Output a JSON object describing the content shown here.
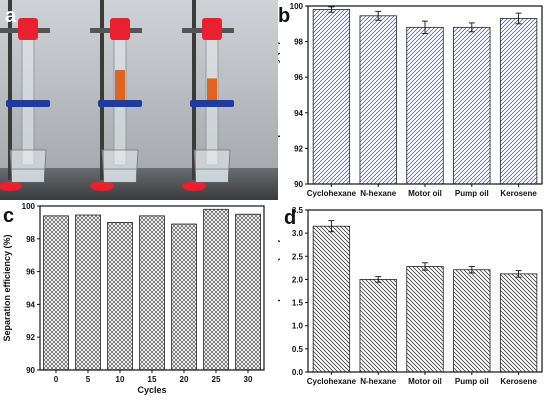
{
  "panels": {
    "a": {
      "letter": "a"
    },
    "b": {
      "letter": "b"
    },
    "c": {
      "letter": "c"
    },
    "d": {
      "letter": "d"
    }
  },
  "photo": {
    "liquid_levels": [
      0.0,
      0.25,
      0.18
    ],
    "liquid_color": "#e0631f",
    "clamp_color": "#1f3b9c",
    "cap_color": "#e8202f"
  },
  "chart_data": [
    {
      "id": "b",
      "type": "bar",
      "categories": [
        "Cyclohexane",
        "N-hexane",
        "Motor oil",
        "Pump oil",
        "Kerosene"
      ],
      "values": [
        99.8,
        99.45,
        98.8,
        98.8,
        99.3
      ],
      "errors": [
        0.15,
        0.25,
        0.35,
        0.25,
        0.3
      ],
      "ylabel": "Separation efficiency (%)",
      "xlabel": "",
      "ylim": [
        90,
        100
      ],
      "yticks": [
        "90",
        "92",
        "94",
        "96",
        "98",
        "100"
      ],
      "hatch": "diagonal-left",
      "bar_color": "#3a4a9e"
    },
    {
      "id": "c",
      "type": "bar",
      "categories": [
        "0",
        "5",
        "10",
        "15",
        "20",
        "25",
        "30"
      ],
      "values": [
        99.4,
        99.45,
        99.0,
        99.4,
        98.9,
        99.8,
        99.5
      ],
      "ylabel": "Separation efficiency (%)",
      "xlabel": "Cycles",
      "ylim": [
        90,
        100
      ],
      "yticks": [
        "90",
        "92",
        "94",
        "96",
        "98",
        "100"
      ],
      "hatch": "cross",
      "bar_color": "#555555"
    },
    {
      "id": "d",
      "type": "bar",
      "categories": [
        "Cyclohexane",
        "N-hexane",
        "Motor oil",
        "Pump oil",
        "Kerosene"
      ],
      "values": [
        3.15,
        2.0,
        2.28,
        2.21,
        2.12
      ],
      "errors": [
        0.12,
        0.06,
        0.08,
        0.07,
        0.07
      ],
      "ylabel": "Intrusion pressure (kPa)",
      "xlabel": "",
      "ylim": [
        0,
        3.5
      ],
      "yticks": [
        "0.0",
        "0.5",
        "1.0",
        "1.5",
        "2.0",
        "2.5",
        "3.0",
        "3.5"
      ],
      "hatch": "diagonal-right",
      "bar_color": "#222222"
    }
  ]
}
